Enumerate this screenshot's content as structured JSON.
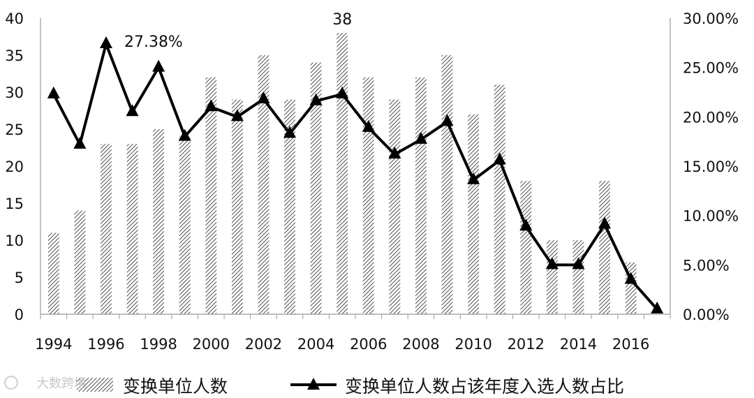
{
  "chart_data": {
    "type": "bar",
    "x": [
      1994,
      1995,
      1996,
      1997,
      1998,
      1999,
      2000,
      2001,
      2002,
      2003,
      2004,
      2005,
      2006,
      2007,
      2008,
      2009,
      2010,
      2011,
      2012,
      2013,
      2014,
      2015,
      2016,
      2017
    ],
    "x_tick_labels": [
      "1994",
      "1996",
      "1998",
      "2000",
      "2002",
      "2004",
      "2006",
      "2008",
      "2010",
      "2012",
      "2014",
      "2016"
    ],
    "series": [
      {
        "name": "变换单位人数",
        "type": "bar",
        "axis": "left",
        "values": [
          11,
          14,
          23,
          23,
          25,
          24,
          32,
          29,
          35,
          29,
          34,
          38,
          32,
          29,
          32,
          35,
          27,
          31,
          18,
          10,
          10,
          18,
          7,
          0
        ]
      },
      {
        "name": "变换单位人数占该年度入选人数占比",
        "type": "line",
        "axis": "right",
        "values": [
          22.3,
          17.2,
          27.38,
          20.5,
          25.0,
          18.0,
          21.0,
          20.0,
          21.8,
          18.3,
          21.6,
          22.3,
          18.9,
          16.2,
          17.7,
          19.5,
          13.6,
          15.6,
          8.9,
          5.0,
          5.0,
          9.1,
          3.5,
          0.5
        ]
      }
    ],
    "left_axis": {
      "ylim": [
        0,
        40
      ],
      "ticks": [
        "0",
        "5",
        "10",
        "15",
        "20",
        "25",
        "30",
        "35",
        "40"
      ]
    },
    "right_axis": {
      "ylim": [
        0,
        30
      ],
      "ticks": [
        "0.00%",
        "5.00%",
        "10.00%",
        "15.00%",
        "20.00%",
        "25.00%",
        "30.00%"
      ]
    },
    "annotations": [
      "38",
      "27.38%"
    ],
    "legend": {
      "position": "bottom",
      "items": [
        "变换单位人数",
        "变换单位人数占该年度入选人数占比"
      ]
    },
    "grid": false,
    "watermark": "大数跨境"
  },
  "colors": {
    "line": "#000000",
    "hatch": "#222222",
    "axis": "#999999"
  }
}
